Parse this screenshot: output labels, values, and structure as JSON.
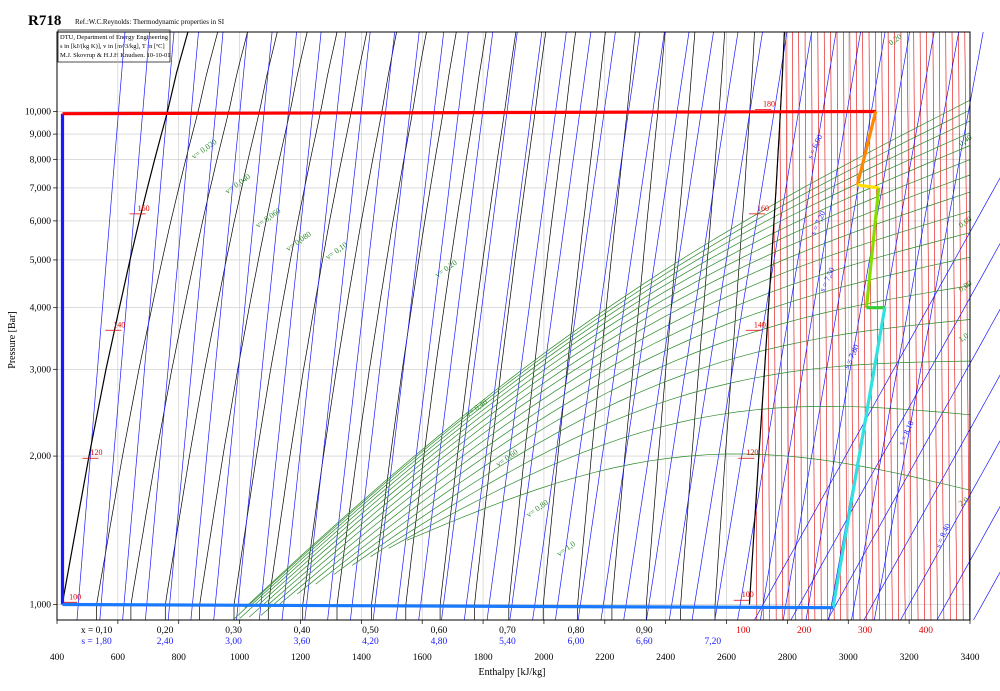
{
  "title": "R718",
  "reference": "Ref.:W.C.Reynolds: Thermodynamic properties in SI",
  "info_box": [
    "DTU, Department of Energy Engineering",
    "s in [kJ/(kg K)], v in [m^3/kg], T in [ºC]",
    "M.J. Skovrup & H.J.H Knudsen. 10-10-01"
  ],
  "colors": {
    "isotherm": "#e00000",
    "isentrope": "#1a1aff",
    "isochore": "#2a8a2a",
    "quality": "#000000",
    "grid": "#c8c8c8"
  },
  "chart_data": {
    "type": "line",
    "title": "R718",
    "xlabel": "Enthalpy [kJ/kg]",
    "ylabel": "Pressure [Bar]",
    "xlim": [
      400,
      3400
    ],
    "ylim": [
      0.93,
      14.5
    ],
    "y_scale": "log",
    "grid": true,
    "x_ticks": [
      "400",
      "600",
      "800",
      "1000",
      "1200",
      "1400",
      "1600",
      "1800",
      "2000",
      "2200",
      "2400",
      "2600",
      "2800",
      "3000",
      "3200",
      "3400"
    ],
    "y_ticks": [
      {
        "value": 1,
        "label": "1,000"
      },
      {
        "value": 2,
        "label": "2,000"
      },
      {
        "value": 3,
        "label": "3,000"
      },
      {
        "value": 4,
        "label": "4,000"
      },
      {
        "value": 5,
        "label": "5,000"
      },
      {
        "value": 6,
        "label": "6,000"
      },
      {
        "value": 7,
        "label": "7,000"
      },
      {
        "value": 8,
        "label": "8,000"
      },
      {
        "value": 9,
        "label": "9,000"
      },
      {
        "value": 10,
        "label": "10,000"
      }
    ],
    "quality_labels": [
      {
        "h": 530,
        "text": "x = 0,10"
      },
      {
        "h": 755,
        "text": "0,20"
      },
      {
        "h": 980,
        "text": "0,30"
      },
      {
        "h": 1205,
        "text": "0,40"
      },
      {
        "h": 1430,
        "text": "0,50"
      },
      {
        "h": 1655,
        "text": "0,60"
      },
      {
        "h": 1880,
        "text": "0,70"
      },
      {
        "h": 2105,
        "text": "0,80"
      },
      {
        "h": 2330,
        "text": "0,90"
      }
    ],
    "entropy_labels": [
      {
        "h": 530,
        "text": "s = 1,80"
      },
      {
        "h": 755,
        "text": "2,40"
      },
      {
        "h": 980,
        "text": "3,00"
      },
      {
        "h": 1205,
        "text": "3,60"
      },
      {
        "h": 1430,
        "text": "4,20"
      },
      {
        "h": 1655,
        "text": "4,80"
      },
      {
        "h": 1880,
        "text": "5,40"
      },
      {
        "h": 2105,
        "text": "6,00"
      },
      {
        "h": 2330,
        "text": "6,60"
      },
      {
        "h": 2555,
        "text": "7,20"
      }
    ],
    "temperature_subaxis": [
      {
        "h": 2655,
        "text": "100"
      },
      {
        "h": 2855,
        "text": "200"
      },
      {
        "h": 3055,
        "text": "300"
      },
      {
        "h": 3255,
        "text": "400"
      }
    ],
    "saturation_liquid": [
      [
        417,
        1.0
      ],
      [
        505,
        2.0
      ],
      [
        561,
        3.0
      ],
      [
        605,
        4.0
      ],
      [
        640,
        5.0
      ],
      [
        670,
        6.0
      ],
      [
        697,
        7.0
      ],
      [
        721,
        8.0
      ],
      [
        743,
        9.0
      ],
      [
        763,
        10.0
      ],
      [
        793,
        12.0
      ],
      [
        830,
        14.5
      ]
    ],
    "saturation_vapor": [
      [
        2675,
        1.0
      ],
      [
        2706,
        2.0
      ],
      [
        2725,
        3.0
      ],
      [
        2738,
        4.0
      ],
      [
        2748,
        5.0
      ],
      [
        2756,
        6.0
      ],
      [
        2763,
        7.0
      ],
      [
        2768,
        8.0
      ],
      [
        2773,
        9.0
      ],
      [
        2777,
        10.0
      ],
      [
        2784,
        12.0
      ],
      [
        2790,
        14.5
      ]
    ],
    "isotherm_labels": [
      {
        "h": 440,
        "p": 1.01,
        "text": "100"
      },
      {
        "h": 510,
        "p": 1.98,
        "text": "120"
      },
      {
        "h": 585,
        "p": 3.6,
        "text": "140"
      },
      {
        "h": 665,
        "p": 6.2,
        "text": "160"
      },
      {
        "h": 2650,
        "p": 1.02,
        "text": "100"
      },
      {
        "h": 2665,
        "p": 1.98,
        "text": "120"
      },
      {
        "h": 2690,
        "p": 3.6,
        "text": "140"
      },
      {
        "h": 2700,
        "p": 6.2,
        "text": "160"
      },
      {
        "h": 2720,
        "p": 10.1,
        "text": "180"
      }
    ],
    "isochore_labels": [
      {
        "h": 850,
        "p": 8.0,
        "text": "v= 0,020"
      },
      {
        "h": 960,
        "p": 6.8,
        "text": "v= 0,040"
      },
      {
        "h": 1060,
        "p": 5.8,
        "text": "v= 0,060"
      },
      {
        "h": 1160,
        "p": 5.2,
        "text": "v= 0,080"
      },
      {
        "h": 1290,
        "p": 5.0,
        "text": "v= 0,10"
      },
      {
        "h": 1650,
        "p": 4.6,
        "text": "v= 0,20"
      },
      {
        "h": 1750,
        "p": 2.4,
        "text": "v= 0,40"
      },
      {
        "h": 1850,
        "p": 1.9,
        "text": "v= 0,60"
      },
      {
        "h": 1950,
        "p": 1.5,
        "text": "v= 0,80"
      },
      {
        "h": 2050,
        "p": 1.25,
        "text": "v= 1,0"
      },
      {
        "h": 3140,
        "p": 13.6,
        "text": "0,20"
      },
      {
        "h": 3370,
        "p": 8.5,
        "text": "0,40"
      },
      {
        "h": 3370,
        "p": 5.8,
        "text": "0,60"
      },
      {
        "h": 3370,
        "p": 4.3,
        "text": "0,80"
      },
      {
        "h": 3370,
        "p": 3.4,
        "text": "1,0"
      },
      {
        "h": 3370,
        "p": 1.58,
        "text": "2,0"
      }
    ],
    "isentrope_labels": [
      {
        "h": 2880,
        "p": 8.0,
        "text": "s = 6,90"
      },
      {
        "h": 2890,
        "p": 5.6,
        "text": "s = 7,20"
      },
      {
        "h": 2920,
        "p": 4.3,
        "text": "s = 7,50"
      },
      {
        "h": 3000,
        "p": 3.0,
        "text": "s = 7,80"
      },
      {
        "h": 3180,
        "p": 2.1,
        "text": "s = 8,10"
      },
      {
        "h": 3300,
        "p": 1.3,
        "text": "s = 8,40"
      }
    ],
    "process_cycle": [
      {
        "name": "",
        "color": "#1a1aff",
        "points": [
          [
            418,
            1.0
          ],
          [
            418,
            9.9
          ]
        ]
      },
      {
        "name": "",
        "color": "#ff0000",
        "points": [
          [
            418,
            9.9
          ],
          [
            3090,
            10.0
          ]
        ]
      },
      {
        "name": "",
        "color": "#ff8800",
        "points": [
          [
            3090,
            10.0
          ],
          [
            3030,
            7.1
          ]
        ]
      },
      {
        "name": "",
        "color": "#ffe000",
        "points": [
          [
            3030,
            7.1
          ],
          [
            3100,
            7.0
          ]
        ]
      },
      {
        "name": "",
        "color": "#88dd00",
        "points": [
          [
            3100,
            7.0
          ],
          [
            3060,
            4.0
          ]
        ]
      },
      {
        "name": "",
        "color": "#33cc33",
        "points": [
          [
            3060,
            4.0
          ],
          [
            3120,
            4.0
          ]
        ]
      },
      {
        "name": "",
        "color": "#33e0e0",
        "points": [
          [
            3120,
            4.0
          ],
          [
            2950,
            0.985
          ]
        ]
      },
      {
        "name": "",
        "color": "#1a7aff",
        "points": [
          [
            2950,
            0.985
          ],
          [
            418,
            1.0
          ]
        ]
      }
    ]
  }
}
